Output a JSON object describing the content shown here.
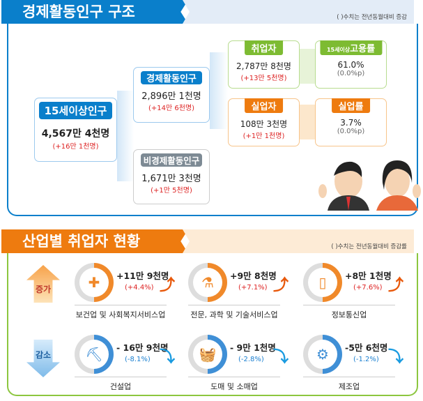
{
  "structure": {
    "title": "경제활동인구 구조",
    "note": "( )수치는 전년동월대비 증감",
    "pop15": {
      "label": "15세이상인구",
      "value": "4,567만 4천명",
      "change": "(+16만 1천명)"
    },
    "active": {
      "label": "경제활동인구",
      "value": "2,896만 1천명",
      "change": "(+14만 6천명)"
    },
    "inactive": {
      "label": "비경제활동인구",
      "value": "1,671만 3천명",
      "change": "(+1만 5천명)"
    },
    "employed": {
      "label": "취업자",
      "value": "2,787만 8천명",
      "change": "(+13만 5천명)"
    },
    "emp_rate": {
      "label_prefix": "15세이상",
      "label": "고용률",
      "value": "61.0%",
      "change": "(0.0%p)"
    },
    "unemployed": {
      "label": "실업자",
      "value": "108만 3천명",
      "change": "(+1만 1천명)"
    },
    "unemp_rate": {
      "label": "실업률",
      "value": "3.7%",
      "change": "(0.0%p)"
    }
  },
  "industry": {
    "title": "산업별 취업자 현황",
    "note": "( )수치는 전년동월대비 증감률",
    "increase_label": "증가",
    "decrease_label": "감소",
    "increase": [
      {
        "name": "보건업 및 사회복지서비스업",
        "value": "+11만 9천명",
        "rate": "(+4.4%)",
        "icon": "medical-kit-icon"
      },
      {
        "name": "전문, 과학 및 기술서비스업",
        "value": "+9만 8천명",
        "rate": "(+7.1%)",
        "icon": "flask-icon"
      },
      {
        "name": "정보통신업",
        "value": "+8만 1천명",
        "rate": "(+7.6%)",
        "icon": "phone-icon"
      }
    ],
    "decrease": [
      {
        "name": "건설업",
        "value": "- 16만 9천명",
        "rate": "(-8.1%)",
        "icon": "excavator-icon"
      },
      {
        "name": "도매 및 소매업",
        "value": "- 9만 1천명",
        "rate": "(-2.8%)",
        "icon": "basket-icon"
      },
      {
        "name": "제조업",
        "value": "-5만 6천명",
        "rate": "(-1.2%)",
        "icon": "gears-icon"
      }
    ]
  },
  "colors": {
    "blue": "#0a7fcb",
    "orange": "#ee7b0f",
    "green": "#8cc63f",
    "gray": "#7d8a94",
    "red": "#d22",
    "down": "#1a9be0"
  }
}
